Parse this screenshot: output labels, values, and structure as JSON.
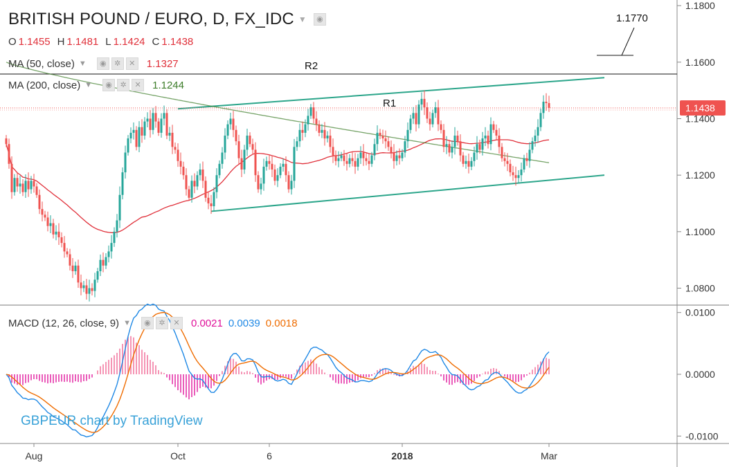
{
  "header": {
    "title": "BRITISH POUND / EURO, D, FX_IDC",
    "ohlc": [
      {
        "key": "O",
        "value": "1.1455"
      },
      {
        "key": "H",
        "value": "1.1481"
      },
      {
        "key": "L",
        "value": "1.1424"
      },
      {
        "key": "C",
        "value": "1.1438"
      }
    ],
    "ma50": {
      "label": "MA (50, close)",
      "value": "1.1327",
      "color": "#e0303a"
    },
    "ma200": {
      "label": "MA (200, close)",
      "value": "1.1244",
      "color": "#3d7d2a"
    },
    "macd": {
      "label": "MACD (12, 26, close, 9)",
      "hist": "0.0021",
      "macd": "0.0039",
      "signal": "0.0018",
      "hist_color": "#e0109a",
      "macd_color": "#1e88e5",
      "signal_color": "#ef6c00"
    }
  },
  "watermark": "GBPEUR chart by TradingView",
  "chart_data": {
    "type": "candlestick",
    "price_axis": {
      "min": 1.074,
      "max": 1.182,
      "ticks": [
        "1.1800",
        "1.1600",
        "1.1400",
        "1.1200",
        "1.1000",
        "1.0800"
      ]
    },
    "macd_axis": {
      "min": -0.0112,
      "max": 0.0112,
      "ticks": [
        "0.0100",
        "0.0000",
        "-0.0100"
      ]
    },
    "time_axis": {
      "labels": [
        "Aug",
        "Oct",
        "6",
        "2018",
        "Mar"
      ],
      "label_index": [
        10,
        62,
        95,
        143,
        196
      ]
    },
    "current_price": "1.1438",
    "annotations": {
      "r1": "R1",
      "r2": "R2",
      "target": "1.1770",
      "r2_level": 1.1558
    },
    "channel": {
      "upper": [
        [
          62,
          1.1435
        ],
        [
          216,
          1.1545
        ]
      ],
      "lower": [
        [
          74,
          1.1072
        ],
        [
          216,
          1.12
        ]
      ]
    },
    "closes": [
      1.131,
      1.124,
      1.114,
      1.119,
      1.116,
      1.117,
      1.114,
      1.118,
      1.115,
      1.118,
      1.116,
      1.113,
      1.108,
      1.106,
      1.105,
      1.102,
      1.103,
      1.099,
      1.1,
      1.098,
      1.096,
      1.093,
      1.092,
      1.088,
      1.086,
      1.088,
      1.082,
      1.08,
      1.081,
      1.078,
      1.08,
      1.079,
      1.083,
      1.086,
      1.09,
      1.088,
      1.091,
      1.093,
      1.096,
      1.1,
      1.104,
      1.113,
      1.121,
      1.128,
      1.133,
      1.135,
      1.136,
      1.13,
      1.137,
      1.134,
      1.139,
      1.14,
      1.136,
      1.142,
      1.139,
      1.135,
      1.14,
      1.142,
      1.134,
      1.135,
      1.13,
      1.129,
      1.125,
      1.123,
      1.12,
      1.115,
      1.112,
      1.118,
      1.116,
      1.12,
      1.122,
      1.118,
      1.112,
      1.11,
      1.109,
      1.114,
      1.12,
      1.124,
      1.128,
      1.134,
      1.138,
      1.14,
      1.136,
      1.132,
      1.126,
      1.122,
      1.129,
      1.134,
      1.131,
      1.129,
      1.12,
      1.115,
      1.117,
      1.123,
      1.125,
      1.124,
      1.122,
      1.118,
      1.12,
      1.123,
      1.124,
      1.12,
      1.115,
      1.118,
      1.13,
      1.132,
      1.136,
      1.135,
      1.138,
      1.141,
      1.144,
      1.14,
      1.138,
      1.135,
      1.136,
      1.133,
      1.134,
      1.13,
      1.127,
      1.125,
      1.126,
      1.127,
      1.125,
      1.124,
      1.126,
      1.125,
      1.123,
      1.126,
      1.128,
      1.126,
      1.125,
      1.124,
      1.127,
      1.131,
      1.135,
      1.134,
      1.133,
      1.132,
      1.13,
      1.128,
      1.125,
      1.127,
      1.126,
      1.128,
      1.132,
      1.136,
      1.14,
      1.142,
      1.138,
      1.145,
      1.147,
      1.144,
      1.14,
      1.138,
      1.142,
      1.144,
      1.138,
      1.136,
      1.13,
      1.131,
      1.128,
      1.13,
      1.134,
      1.132,
      1.127,
      1.124,
      1.125,
      1.123,
      1.125,
      1.128,
      1.131,
      1.129,
      1.133,
      1.134,
      1.131,
      1.138,
      1.136,
      1.134,
      1.13,
      1.126,
      1.125,
      1.124,
      1.121,
      1.12,
      1.119,
      1.12,
      1.122,
      1.126,
      1.125,
      1.129,
      1.132,
      1.134,
      1.137,
      1.142,
      1.146,
      1.1455,
      1.1438
    ]
  }
}
